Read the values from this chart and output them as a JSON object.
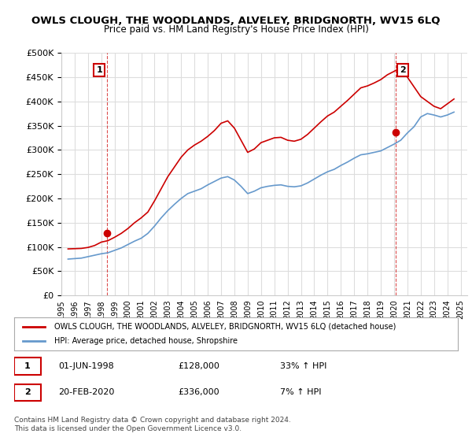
{
  "title": "OWLS CLOUGH, THE WOODLANDS, ALVELEY, BRIDGNORTH, WV15 6LQ",
  "subtitle": "Price paid vs. HM Land Registry's House Price Index (HPI)",
  "ylabel_values": [
    "£0",
    "£50K",
    "£100K",
    "£150K",
    "£200K",
    "£250K",
    "£300K",
    "£350K",
    "£400K",
    "£450K",
    "£500K"
  ],
  "ylim": [
    0,
    500000
  ],
  "yticks": [
    0,
    50000,
    100000,
    150000,
    200000,
    250000,
    300000,
    350000,
    400000,
    450000,
    500000
  ],
  "legend_red": "OWLS CLOUGH, THE WOODLANDS, ALVELEY, BRIDGNORTH, WV15 6LQ (detached house)",
  "legend_blue": "HPI: Average price, detached house, Shropshire",
  "footnote": "Contains HM Land Registry data © Crown copyright and database right 2024.\nThis data is licensed under the Open Government Licence v3.0.",
  "annotation1_label": "1",
  "annotation1_date": "01-JUN-1998",
  "annotation1_price": "£128,000",
  "annotation1_hpi": "33% ↑ HPI",
  "annotation2_label": "2",
  "annotation2_date": "20-FEB-2020",
  "annotation2_price": "£336,000",
  "annotation2_hpi": "7% ↑ HPI",
  "red_color": "#cc0000",
  "blue_color": "#6699cc",
  "vline_color": "#cc0000",
  "background_color": "#ffffff",
  "grid_color": "#dddddd",
  "hpi_line": {
    "dates_approx": [
      1995.5,
      1996.0,
      1996.5,
      1997.0,
      1997.5,
      1998.0,
      1998.5,
      1999.0,
      1999.5,
      2000.0,
      2000.5,
      2001.0,
      2001.5,
      2002.0,
      2002.5,
      2003.0,
      2003.5,
      2004.0,
      2004.5,
      2005.0,
      2005.5,
      2006.0,
      2006.5,
      2007.0,
      2007.5,
      2008.0,
      2008.5,
      2009.0,
      2009.5,
      2010.0,
      2010.5,
      2011.0,
      2011.5,
      2012.0,
      2012.5,
      2013.0,
      2013.5,
      2014.0,
      2014.5,
      2015.0,
      2015.5,
      2016.0,
      2016.5,
      2017.0,
      2017.5,
      2018.0,
      2018.5,
      2019.0,
      2019.5,
      2020.0,
      2020.5,
      2021.0,
      2021.5,
      2022.0,
      2022.5,
      2023.0,
      2023.5,
      2024.0,
      2024.5
    ],
    "values_approx": [
      75000,
      76000,
      77000,
      80000,
      83000,
      86000,
      88000,
      93000,
      98000,
      105000,
      112000,
      118000,
      128000,
      143000,
      160000,
      175000,
      188000,
      200000,
      210000,
      215000,
      220000,
      228000,
      235000,
      242000,
      245000,
      238000,
      225000,
      210000,
      215000,
      222000,
      225000,
      227000,
      228000,
      225000,
      224000,
      226000,
      232000,
      240000,
      248000,
      255000,
      260000,
      268000,
      275000,
      283000,
      290000,
      292000,
      295000,
      298000,
      305000,
      312000,
      320000,
      335000,
      348000,
      368000,
      375000,
      372000,
      368000,
      372000,
      378000
    ]
  },
  "price_paid_line": {
    "dates_approx": [
      1995.5,
      1996.0,
      1996.5,
      1997.0,
      1997.5,
      1998.0,
      1998.5,
      1999.0,
      1999.5,
      2000.0,
      2000.5,
      2001.0,
      2001.5,
      2002.0,
      2002.5,
      2003.0,
      2003.5,
      2004.0,
      2004.5,
      2005.0,
      2005.5,
      2006.0,
      2006.5,
      2007.0,
      2007.5,
      2008.0,
      2008.5,
      2009.0,
      2009.5,
      2010.0,
      2010.5,
      2011.0,
      2011.5,
      2012.0,
      2012.5,
      2013.0,
      2013.5,
      2014.0,
      2014.5,
      2015.0,
      2015.5,
      2016.0,
      2016.5,
      2017.0,
      2017.5,
      2018.0,
      2018.5,
      2019.0,
      2019.5,
      2020.0,
      2020.5,
      2021.0,
      2021.5,
      2022.0,
      2022.5,
      2023.0,
      2023.5,
      2024.0,
      2024.5
    ],
    "values_approx": [
      96000,
      96500,
      97000,
      99000,
      103000,
      110000,
      113000,
      120000,
      128000,
      138000,
      150000,
      160000,
      172000,
      195000,
      220000,
      245000,
      265000,
      285000,
      300000,
      310000,
      318000,
      328000,
      340000,
      355000,
      360000,
      345000,
      320000,
      295000,
      302000,
      315000,
      320000,
      325000,
      326000,
      320000,
      318000,
      322000,
      332000,
      345000,
      358000,
      370000,
      378000,
      390000,
      402000,
      415000,
      428000,
      432000,
      438000,
      445000,
      455000,
      462000,
      470000,
      450000,
      430000,
      410000,
      400000,
      390000,
      385000,
      395000,
      405000
    ]
  },
  "sale1_x": 1998.42,
  "sale1_y": 128000,
  "sale2_x": 2020.12,
  "sale2_y": 336000,
  "xtick_years": [
    1995,
    1996,
    1997,
    1998,
    1999,
    2000,
    2001,
    2002,
    2003,
    2004,
    2005,
    2006,
    2007,
    2008,
    2009,
    2010,
    2011,
    2012,
    2013,
    2014,
    2015,
    2016,
    2017,
    2018,
    2019,
    2020,
    2021,
    2022,
    2023,
    2024,
    2025
  ]
}
